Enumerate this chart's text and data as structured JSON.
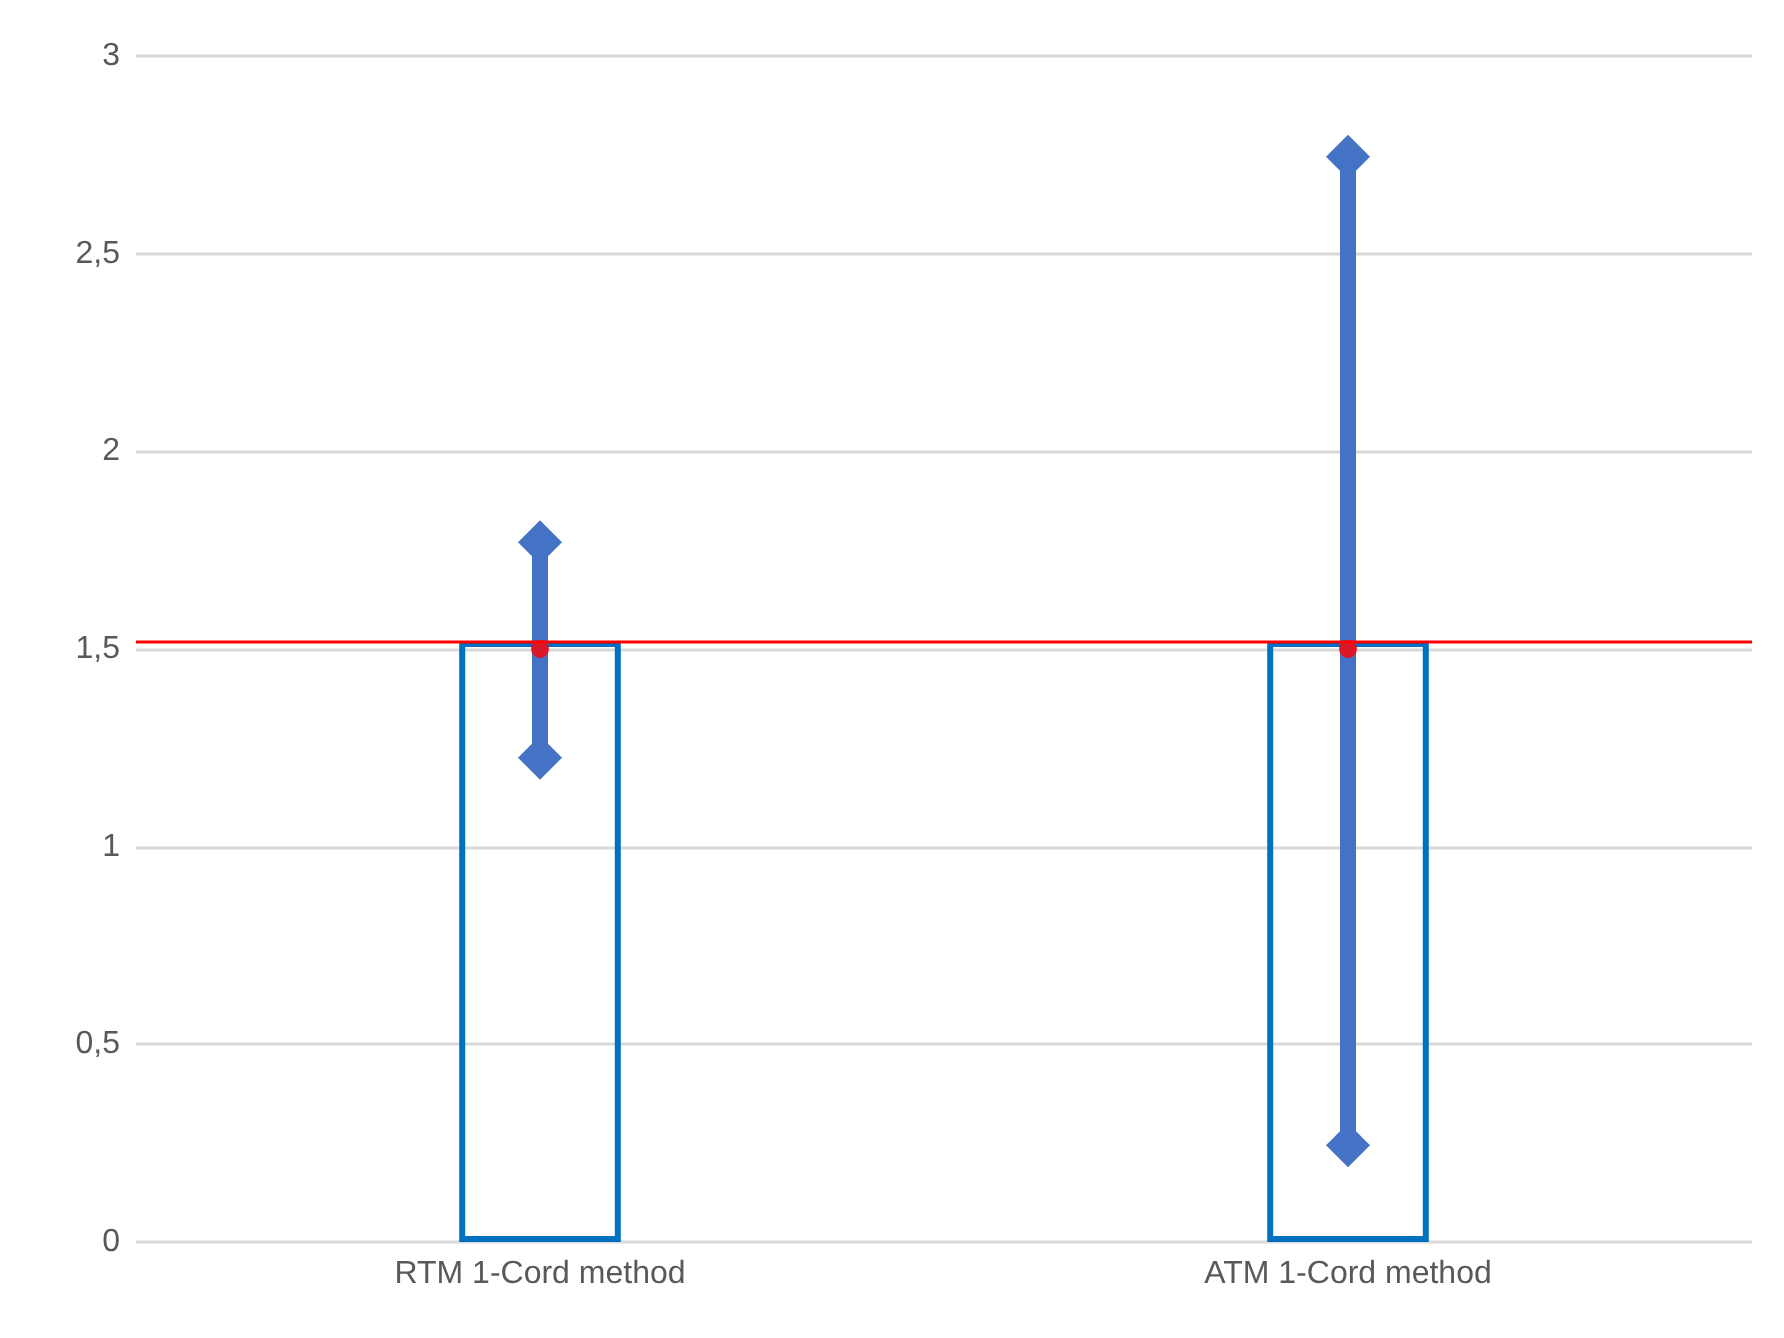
{
  "chart_data": {
    "type": "bar",
    "categories": [
      "RTM 1-Cord method",
      "ATM 1-Cord method"
    ],
    "series": [
      {
        "color": "#0070c0",
        "values": [
          1.52,
          1.52
        ]
      },
      {
        "type": "line",
        "color": "#4472c4",
        "marker": "diamond",
        "x": [
          "RTM 1-Cord method",
          "RTM 1-Cord method"
        ],
        "values": [
          1.225,
          1.77
        ]
      },
      {
        "type": "line",
        "color": "#4472c4",
        "marker": "diamond",
        "x": [
          "ATM 1-Cord method",
          "ATM 1-Cord method"
        ],
        "values": [
          0.245,
          2.745
        ]
      },
      {
        "type": "scatter",
        "color": "#ff0000",
        "x": [
          "RTM 1-Cord method",
          "ATM 1-Cord method"
        ],
        "values": [
          1.5,
          1.5
        ]
      }
    ],
    "ylim": [
      0,
      3
    ],
    "yticks": [
      0,
      {
        "value": 0.5,
        "label": "0,5"
      },
      1,
      {
        "value": 1.5,
        "label": "1,5"
      },
      2,
      {
        "value": 2.5,
        "label": "2,5"
      },
      3
    ],
    "ref_lines": [
      {
        "axis": "y",
        "value": 1.52,
        "color": "#ff0000"
      }
    ],
    "grid": "y",
    "marker": "circle"
  }
}
